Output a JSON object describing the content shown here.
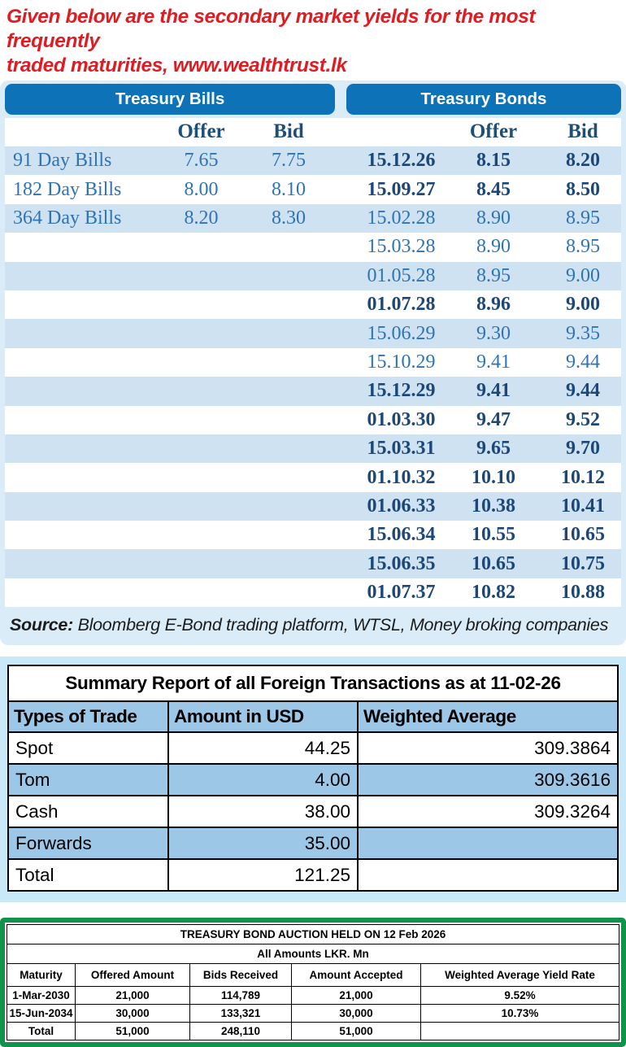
{
  "page_title": {
    "line1": "Given below are the secondary market yields for the most frequently",
    "line2": "traded maturities, www.wealthtrust.lk"
  },
  "colors": {
    "title_red": "#e11b22",
    "header_bar_blue": "#0e72b8",
    "row_stripe_blue": "#cfe2f2",
    "panel_frame_blue": "#d9ecf8",
    "text_blue_regular": "#2e74b5",
    "text_blue_bold": "#1b4779",
    "summary_blue": "#9cc7e6",
    "summary_frame_blue": "#c9e8f8",
    "auction_green": "#10934a"
  },
  "yields": {
    "bills_header": "Treasury Bills",
    "bonds_header": "Treasury Bonds",
    "columns": {
      "offer": "Offer",
      "bid": "Bid"
    },
    "rows": [
      {
        "bill": "91 Day Bills",
        "bill_offer": "7.65",
        "bill_bid": "7.75",
        "bond_date": "15.12.26",
        "bond_offer": "8.15",
        "bond_bid": "8.20",
        "bond_bold": true
      },
      {
        "bill": "182 Day Bills",
        "bill_offer": "8.00",
        "bill_bid": "8.10",
        "bond_date": "15.09.27",
        "bond_offer": "8.45",
        "bond_bid": "8.50",
        "bond_bold": true
      },
      {
        "bill": "364 Day Bills",
        "bill_offer": "8.20",
        "bill_bid": "8.30",
        "bond_date": "15.02.28",
        "bond_offer": "8.90",
        "bond_bid": "8.95",
        "bond_bold": false
      },
      {
        "bill": "",
        "bill_offer": "",
        "bill_bid": "",
        "bond_date": "15.03.28",
        "bond_offer": "8.90",
        "bond_bid": "8.95",
        "bond_bold": false
      },
      {
        "bill": "",
        "bill_offer": "",
        "bill_bid": "",
        "bond_date": "01.05.28",
        "bond_offer": "8.95",
        "bond_bid": "9.00",
        "bond_bold": false
      },
      {
        "bill": "",
        "bill_offer": "",
        "bill_bid": "",
        "bond_date": "01.07.28",
        "bond_offer": "8.96",
        "bond_bid": "9.00",
        "bond_bold": true
      },
      {
        "bill": "",
        "bill_offer": "",
        "bill_bid": "",
        "bond_date": "15.06.29",
        "bond_offer": "9.30",
        "bond_bid": "9.35",
        "bond_bold": false
      },
      {
        "bill": "",
        "bill_offer": "",
        "bill_bid": "",
        "bond_date": "15.10.29",
        "bond_offer": "9.41",
        "bond_bid": "9.44",
        "bond_bold": false
      },
      {
        "bill": "",
        "bill_offer": "",
        "bill_bid": "",
        "bond_date": "15.12.29",
        "bond_offer": "9.41",
        "bond_bid": "9.44",
        "bond_bold": true
      },
      {
        "bill": "",
        "bill_offer": "",
        "bill_bid": "",
        "bond_date": "01.03.30",
        "bond_offer": "9.47",
        "bond_bid": "9.52",
        "bond_bold": true
      },
      {
        "bill": "",
        "bill_offer": "",
        "bill_bid": "",
        "bond_date": "15.03.31",
        "bond_offer": "9.65",
        "bond_bid": "9.70",
        "bond_bold": true
      },
      {
        "bill": "",
        "bill_offer": "",
        "bill_bid": "",
        "bond_date": "01.10.32",
        "bond_offer": "10.10",
        "bond_bid": "10.12",
        "bond_bold": true
      },
      {
        "bill": "",
        "bill_offer": "",
        "bill_bid": "",
        "bond_date": "01.06.33",
        "bond_offer": "10.38",
        "bond_bid": "10.41",
        "bond_bold": true
      },
      {
        "bill": "",
        "bill_offer": "",
        "bill_bid": "",
        "bond_date": "15.06.34",
        "bond_offer": "10.55",
        "bond_bid": "10.65",
        "bond_bold": true
      },
      {
        "bill": "",
        "bill_offer": "",
        "bill_bid": "",
        "bond_date": "15.06.35",
        "bond_offer": "10.65",
        "bond_bid": "10.75",
        "bond_bold": true
      },
      {
        "bill": "",
        "bill_offer": "",
        "bill_bid": "",
        "bond_date": "01.07.37",
        "bond_offer": "10.82",
        "bond_bid": "10.88",
        "bond_bold": true
      }
    ],
    "source_label": "Source:",
    "source_text": " Bloomberg E-Bond trading platform, WTSL, Money broking companies"
  },
  "summary": {
    "title": "Summary Report of all Foreign Transactions as at 11-02-26",
    "headers": [
      "Types of Trade",
      "Amount in USD",
      "Weighted Average"
    ],
    "rows": [
      {
        "type": "Spot",
        "amount": "44.25",
        "weighted_average": "309.3864"
      },
      {
        "type": "Tom",
        "amount": "4.00",
        "weighted_average": "309.3616"
      },
      {
        "type": "Cash",
        "amount": "38.00",
        "weighted_average": "309.3264"
      },
      {
        "type": "Forwards",
        "amount": "35.00",
        "weighted_average": ""
      },
      {
        "type": "Total",
        "amount": "121.25",
        "weighted_average": ""
      }
    ]
  },
  "auction": {
    "title": "TREASURY BOND AUCTION HELD ON 12 Feb 2026",
    "subtitle": "All Amounts LKR. Mn",
    "headers": [
      "Maturity",
      "Offered Amount",
      "Bids Received",
      "Amount Accepted",
      "Weighted Average Yield Rate"
    ],
    "rows": [
      {
        "maturity": "1-Mar-2030",
        "offered": "21,000",
        "bids": "114,789",
        "accepted": "21,000",
        "wayr": "9.52%"
      },
      {
        "maturity": "15-Jun-2034",
        "offered": "30,000",
        "bids": "133,321",
        "accepted": "30,000",
        "wayr": "10.73%"
      },
      {
        "maturity": "Total",
        "offered": "51,000",
        "bids": "248,110",
        "accepted": "51,000",
        "wayr": ""
      }
    ]
  }
}
